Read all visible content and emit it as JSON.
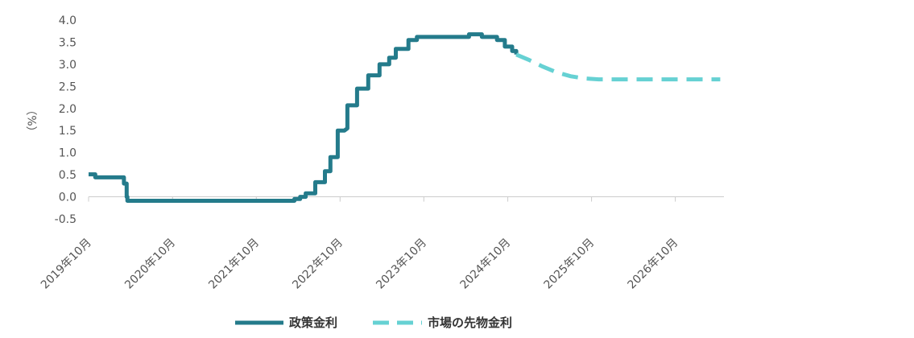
{
  "chart_data": {
    "type": "line",
    "title": "",
    "xlabel": "",
    "ylabel": "（%）",
    "ylim": [
      -0.5,
      4.0
    ],
    "yticks": [
      "4.0",
      "3.5",
      "3.0",
      "2.5",
      "2.0",
      "1.5",
      "1.0",
      "0.5",
      "0.0",
      "-0.5"
    ],
    "xticks": [
      "2019年10月",
      "2020年10月",
      "2021年10月",
      "2022年10月",
      "2023年10月",
      "2024年10月",
      "2025年10月",
      "2026年10月"
    ],
    "grid": false,
    "legend_position": "bottom",
    "colors": {
      "policy": "#247b8b",
      "futures": "#66d1d3",
      "axis": "#cccccc"
    },
    "series": [
      {
        "name": "政策金利",
        "style": "solid",
        "points": [
          [
            "2019-10-01",
            0.51
          ],
          [
            "2019-10-30",
            0.51
          ],
          [
            "2019-10-30",
            0.44
          ],
          [
            "2020-03-03",
            0.44
          ],
          [
            "2020-03-03",
            0.3
          ],
          [
            "2020-03-15",
            0.3
          ],
          [
            "2020-03-15",
            0.0
          ],
          [
            "2020-03-18",
            0.0
          ],
          [
            "2020-03-18",
            -0.09
          ],
          [
            "2022-03-16",
            -0.09
          ],
          [
            "2022-03-16",
            -0.05
          ],
          [
            "2022-04-10",
            -0.05
          ],
          [
            "2022-04-10",
            0.0
          ],
          [
            "2022-05-04",
            0.0
          ],
          [
            "2022-05-04",
            0.08
          ],
          [
            "2022-06-15",
            0.08
          ],
          [
            "2022-06-15",
            0.33
          ],
          [
            "2022-07-27",
            0.33
          ],
          [
            "2022-07-27",
            0.58
          ],
          [
            "2022-08-20",
            0.58
          ],
          [
            "2022-08-20",
            0.9
          ],
          [
            "2022-09-21",
            0.9
          ],
          [
            "2022-09-21",
            1.5
          ],
          [
            "2022-10-20",
            1.5
          ],
          [
            "2022-11-02",
            1.55
          ],
          [
            "2022-11-02",
            2.07
          ],
          [
            "2022-12-14",
            2.07
          ],
          [
            "2022-12-14",
            2.45
          ],
          [
            "2023-02-01",
            2.45
          ],
          [
            "2023-02-01",
            2.75
          ],
          [
            "2023-03-22",
            2.75
          ],
          [
            "2023-03-22",
            3.0
          ],
          [
            "2023-05-03",
            3.0
          ],
          [
            "2023-05-03",
            3.15
          ],
          [
            "2023-06-01",
            3.15
          ],
          [
            "2023-06-01",
            3.35
          ],
          [
            "2023-07-26",
            3.35
          ],
          [
            "2023-07-26",
            3.55
          ],
          [
            "2023-09-01",
            3.55
          ],
          [
            "2023-09-01",
            3.62
          ],
          [
            "2024-04-15",
            3.62
          ],
          [
            "2024-04-15",
            3.68
          ],
          [
            "2024-06-10",
            3.68
          ],
          [
            "2024-06-10",
            3.62
          ],
          [
            "2024-08-15",
            3.62
          ],
          [
            "2024-08-15",
            3.55
          ],
          [
            "2024-09-18",
            3.55
          ],
          [
            "2024-09-18",
            3.4
          ],
          [
            "2024-10-20",
            3.4
          ],
          [
            "2024-10-20",
            3.3
          ],
          [
            "2024-11-07",
            3.3
          ],
          [
            "2024-11-07",
            3.22
          ]
        ]
      },
      {
        "name": "市場の先物金利",
        "style": "dashed",
        "points": [
          [
            "2024-11-07",
            3.22
          ],
          [
            "2025-01-01",
            3.1
          ],
          [
            "2025-03-01",
            2.95
          ],
          [
            "2025-05-01",
            2.82
          ],
          [
            "2025-07-01",
            2.73
          ],
          [
            "2025-09-01",
            2.68
          ],
          [
            "2025-11-01",
            2.66
          ],
          [
            "2026-06-01",
            2.66
          ],
          [
            "2027-04-15",
            2.66
          ]
        ]
      }
    ]
  }
}
